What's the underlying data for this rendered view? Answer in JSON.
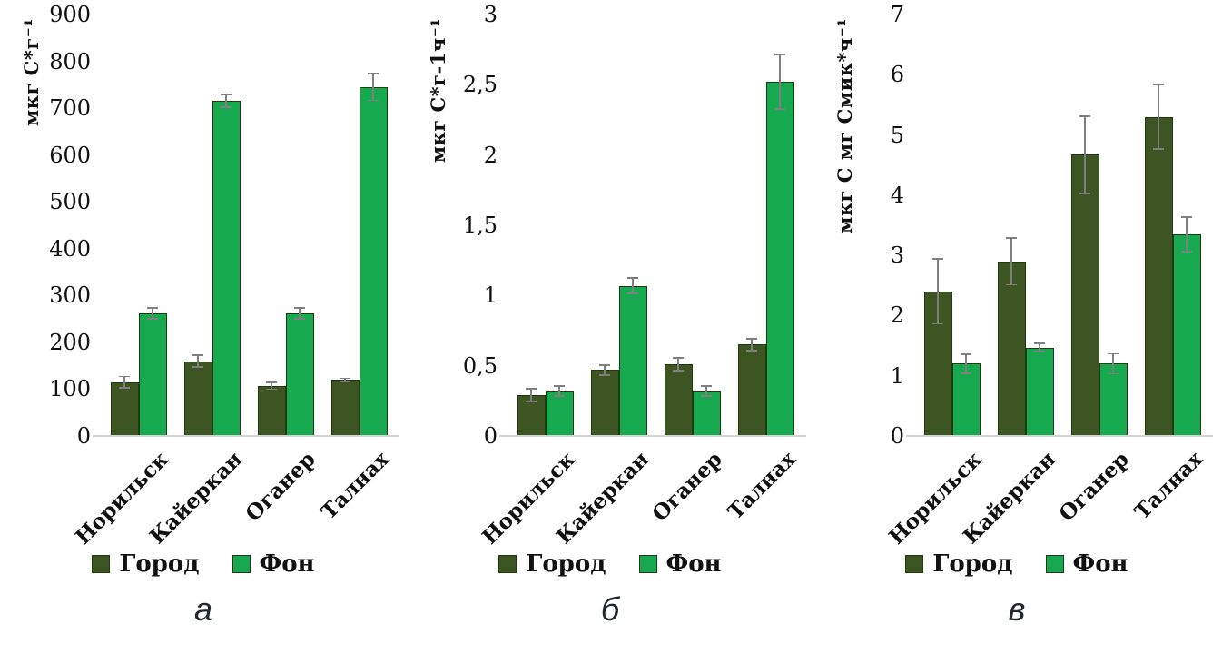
{
  "colors": {
    "series_city": "#3c5523",
    "series_background": "#17a94f",
    "bar_border": "#1e3a0e",
    "error_bar": "#7f7f7f",
    "axis_line": "#d4d4d4",
    "text": "#111111"
  },
  "chart_data": [
    {
      "type": "bar",
      "panel_label": "а",
      "ylabel": "мкг С*г⁻¹",
      "categories": [
        "Норильск",
        "Кайеркан",
        "Оганер",
        "Талнах"
      ],
      "series": [
        {
          "name": "Город",
          "values": [
            115,
            160,
            107,
            120
          ],
          "errors": [
            14,
            14,
            9,
            5
          ]
        },
        {
          "name": "Фон",
          "values": [
            262,
            716,
            262,
            745
          ],
          "errors": [
            13,
            15,
            13,
            30
          ]
        }
      ],
      "ylim": [
        0,
        900
      ],
      "ytick_values": [
        0,
        100,
        200,
        300,
        400,
        500,
        600,
        700,
        800,
        900
      ],
      "ytick_labels": [
        "0",
        "100",
        "200",
        "300",
        "400",
        "500",
        "600",
        "700",
        "800",
        "900"
      ],
      "grid": false,
      "legend_position": "bottom",
      "error_bars": true
    },
    {
      "type": "bar",
      "panel_label": "б",
      "ylabel": "мкг С*г-1ч⁻¹",
      "categories": [
        "Норильск",
        "Кайеркан",
        "Оганер",
        "Талнах"
      ],
      "series": [
        {
          "name": "Город",
          "values": [
            0.29,
            0.47,
            0.51,
            0.65
          ],
          "errors": [
            0.05,
            0.04,
            0.05,
            0.05
          ]
        },
        {
          "name": "Фон",
          "values": [
            0.32,
            1.07,
            0.32,
            2.52
          ],
          "errors": [
            0.04,
            0.06,
            0.04,
            0.2
          ]
        }
      ],
      "ylim": [
        0,
        3
      ],
      "ytick_values": [
        0,
        0.5,
        1,
        1.5,
        2,
        2.5,
        3
      ],
      "ytick_labels": [
        "0",
        "0,5",
        "1",
        "1,5",
        "2",
        "2,5",
        "3"
      ],
      "grid": false,
      "legend_position": "bottom",
      "error_bars": true
    },
    {
      "type": "bar",
      "panel_label": "в",
      "ylabel": "мкг С мг Смик*ч⁻¹",
      "categories": [
        "Норильск",
        "Кайеркан",
        "Оганер",
        "Талнах"
      ],
      "series": [
        {
          "name": "Город",
          "values": [
            2.4,
            2.9,
            4.67,
            5.3
          ],
          "errors": [
            0.55,
            0.4,
            0.65,
            0.55
          ]
        },
        {
          "name": "Фон",
          "values": [
            1.2,
            1.47,
            1.2,
            3.35
          ],
          "errors": [
            0.17,
            0.08,
            0.18,
            0.3
          ]
        }
      ],
      "ylim": [
        0,
        7
      ],
      "ytick_values": [
        0,
        1,
        2,
        3,
        4,
        5,
        6,
        7
      ],
      "ytick_labels": [
        "0",
        "1",
        "2",
        "3",
        "4",
        "5",
        "6",
        "7"
      ],
      "grid": false,
      "legend_position": "bottom",
      "error_bars": true
    }
  ]
}
